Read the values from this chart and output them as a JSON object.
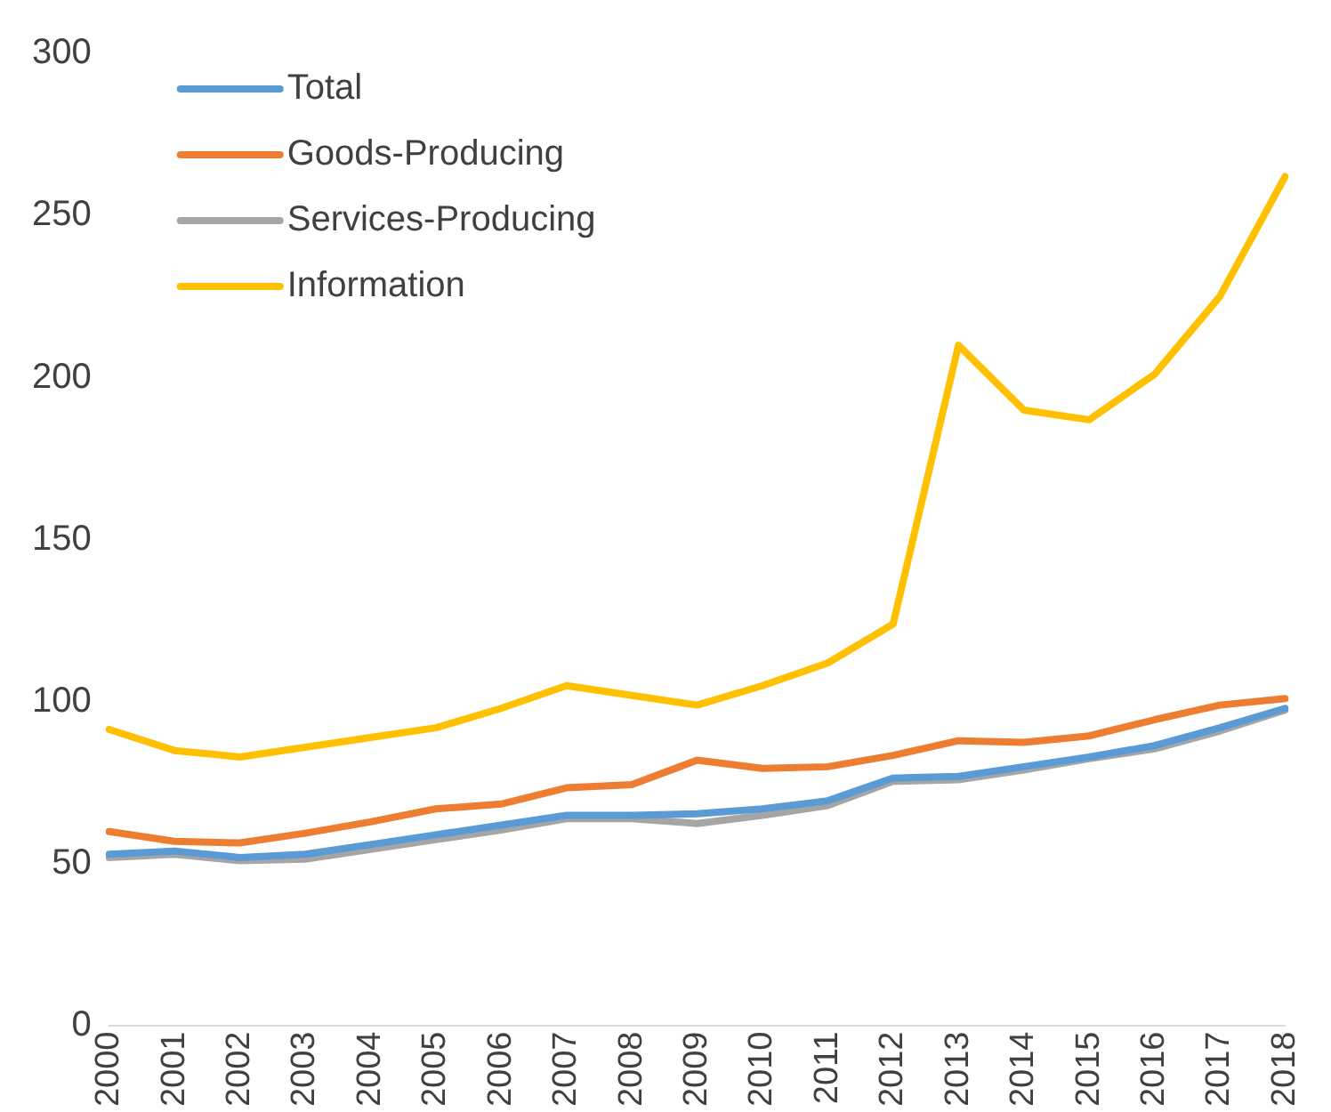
{
  "chart_data": {
    "type": "line",
    "categories": [
      "2000",
      "2001",
      "2002",
      "2003",
      "2004",
      "2005",
      "2006",
      "2007",
      "2008",
      "2009",
      "2010",
      "2011",
      "2012",
      "2013",
      "2014",
      "2015",
      "2016",
      "2017",
      "2018"
    ],
    "series": [
      {
        "name": "Total",
        "color": "#5b9bd5",
        "values": [
          53,
          54,
          52,
          53,
          56,
          59,
          62,
          65,
          65,
          65.5,
          67,
          69.5,
          76.5,
          77,
          80,
          83,
          86.5,
          92,
          98
        ]
      },
      {
        "name": "Goods-Producing",
        "color": "#ed7d31",
        "values": [
          60,
          57,
          56.5,
          59.5,
          63,
          67,
          68.5,
          73.5,
          74.5,
          82,
          79.5,
          80,
          83.5,
          88,
          87.5,
          89.5,
          94.5,
          99,
          101
        ]
      },
      {
        "name": "Services-Producing",
        "color": "#a5a5a5",
        "values": [
          52,
          53,
          51,
          51.5,
          54.5,
          57.5,
          60.5,
          64,
          64,
          62.5,
          65,
          68,
          75.5,
          76,
          79,
          82.5,
          85.5,
          91,
          97.5
        ]
      },
      {
        "name": "Information",
        "color": "#ffc000",
        "values": [
          91.5,
          85,
          83,
          86,
          89,
          92,
          98,
          105,
          102,
          99,
          105,
          112,
          124,
          210,
          190,
          187,
          201,
          225,
          262
        ]
      }
    ],
    "ylim": [
      0,
      300
    ],
    "yticks": [
      0,
      50,
      100,
      150,
      200,
      250,
      300
    ],
    "grid": false,
    "legend": "top left",
    "marker": "none",
    "line_style": "solid"
  }
}
